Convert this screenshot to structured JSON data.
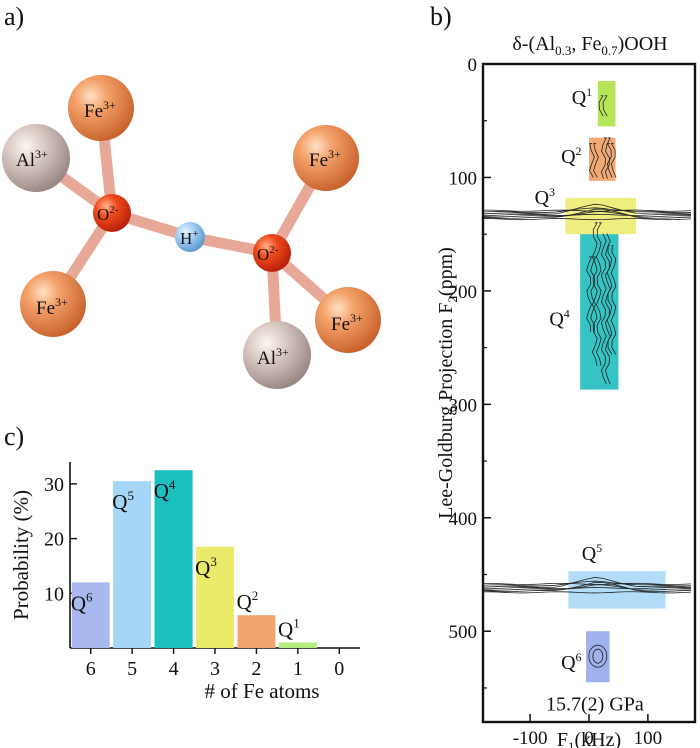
{
  "panel_labels": {
    "a": "a)",
    "b": "b)",
    "c": "c)"
  },
  "molecule": {
    "fe1": {
      "base": "Fe",
      "sup": "3+"
    },
    "al1": {
      "base": "Al",
      "sup": "3+"
    },
    "fe2": {
      "base": "Fe",
      "sup": "3+"
    },
    "fe3": {
      "base": "Fe",
      "sup": "3+"
    },
    "fe4": {
      "base": "Fe",
      "sup": "3+"
    },
    "al2": {
      "base": "Al",
      "sup": "3+"
    },
    "o1": {
      "base": "O",
      "sup": "2-"
    },
    "o2": {
      "base": "O",
      "sup": "2-"
    },
    "h": {
      "base": "H",
      "sup": "+"
    }
  },
  "chart_data": [
    {
      "type": "bar",
      "panel": "c",
      "title": "",
      "xlabel": "# of Fe atoms",
      "ylabel": "Probability (%)",
      "categories": [
        "6",
        "5",
        "4",
        "3",
        "2",
        "1",
        "0"
      ],
      "values": [
        12,
        30.5,
        32.5,
        18.5,
        6,
        1,
        0
      ],
      "bar_labels": [
        {
          "base": "Q",
          "sup": "6"
        },
        {
          "base": "Q",
          "sup": "5"
        },
        {
          "base": "Q",
          "sup": "4"
        },
        {
          "base": "Q",
          "sup": "3"
        },
        {
          "base": "Q",
          "sup": "2"
        },
        {
          "base": "Q",
          "sup": "1"
        },
        {
          "base": "",
          "sup": ""
        }
      ],
      "colors": [
        "#a9b9ef",
        "#a6d6f7",
        "#1bbfbe",
        "#ecea6a",
        "#f1a66e",
        "#b4ec7c",
        "#ffffff"
      ],
      "ylim": [
        0,
        34
      ],
      "yticks": [
        10,
        20,
        30
      ]
    },
    {
      "type": "contour",
      "panel": "b",
      "title": {
        "pre": "δ-(Al",
        "sub1": "0.3",
        "mid": ", Fe",
        "sub2": "0.7",
        "post": ")OOH"
      },
      "xlabel": {
        "pre": "F",
        "sub": "1",
        "post": "(kHz)"
      },
      "ylabel": {
        "pre": "Lee-Goldburg Projection F",
        "sub": "2",
        "post": "(ppm)"
      },
      "xlim": [
        -180,
        180
      ],
      "ylim": [
        0,
        580
      ],
      "y_inverted": true,
      "xticks": [
        -100,
        0,
        100
      ],
      "yticks": [
        0,
        100,
        200,
        300,
        400,
        500
      ],
      "annotation": "15.7(2) GPa",
      "regions": [
        {
          "label": {
            "base": "Q",
            "sup": "1"
          },
          "x": [
            15,
            45
          ],
          "y": [
            15,
            55
          ],
          "color": "#a8e23a"
        },
        {
          "label": {
            "base": "Q",
            "sup": "2"
          },
          "x": [
            0,
            45
          ],
          "y": [
            65,
            103
          ],
          "color": "#f09a5c"
        },
        {
          "label": {
            "base": "Q",
            "sup": "3"
          },
          "x": [
            -40,
            80
          ],
          "y": [
            118,
            150
          ],
          "color": "#ecea6a"
        },
        {
          "label": {
            "base": "Q",
            "sup": "4"
          },
          "x": [
            -15,
            50
          ],
          "y": [
            150,
            287
          ],
          "color": "#12b8ba"
        },
        {
          "label": {
            "base": "Q",
            "sup": "5"
          },
          "x": [
            -35,
            130
          ],
          "y": [
            447,
            480
          ],
          "color": "#a6d6f7"
        },
        {
          "label": {
            "base": "Q",
            "sup": "6"
          },
          "x": [
            -5,
            35
          ],
          "y": [
            500,
            545
          ],
          "color": "#8fa4ea"
        }
      ],
      "ridges_ppm": [
        133,
        462
      ]
    }
  ]
}
